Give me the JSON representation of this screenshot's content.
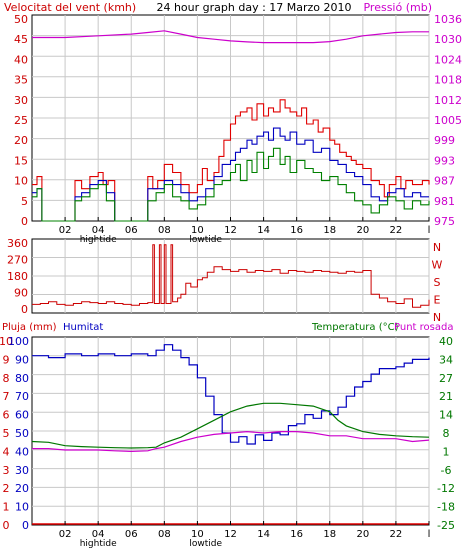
{
  "header": {
    "left_label": "Velocitat del vent (kmh)",
    "center_label": "24 hour graph day : 17 Marzo 2010",
    "right_label": "Pressió (mb)"
  },
  "colors": {
    "wind_speed": "#e00000",
    "wind_avg": "#0000c0",
    "wind_calm": "#008000",
    "pressure": "#cc00cc",
    "direction": "#cc0000",
    "humidity": "#0000c0",
    "temperature": "#007700",
    "dewpoint": "#cc00cc",
    "rain": "#e00000",
    "grid": "#c8c8c8",
    "frame": "#000000",
    "left_axis_text": "#cc0000",
    "right_axis_text": "#cc00cc",
    "humid_axis_text": "#0000c0",
    "temp_axis_text": "#007700"
  },
  "x_axis": {
    "range": [
      0,
      24
    ],
    "tick_labels": [
      "02",
      "04",
      "06",
      "08",
      "10",
      "12",
      "14",
      "16",
      "18",
      "20",
      "22",
      "l"
    ],
    "tick_hours": [
      2,
      4,
      6,
      8,
      10,
      12,
      14,
      16,
      18,
      20,
      22,
      24
    ],
    "tide_labels": [
      {
        "text": "hightide",
        "hour": 4
      },
      {
        "text": "lowtide",
        "hour": 10.5
      }
    ]
  },
  "chart_data": [
    {
      "type": "line",
      "panel": "wind",
      "left_axis": {
        "label": "Velocitat del vent (kmh)",
        "range": [
          0,
          50
        ],
        "ticks": [
          "0",
          "5",
          "10",
          "15",
          "20",
          "25",
          "30",
          "35",
          "40",
          "45",
          "50"
        ]
      },
      "right_axis": {
        "label": "Pressió (mb)",
        "range": [
          975,
          1035
        ],
        "ticks": [
          "975",
          "981",
          "987",
          "993",
          "999",
          "1005",
          "1012",
          "1018",
          "1024",
          "1030",
          "1036"
        ]
      },
      "series": [
        {
          "key": "gust",
          "color": "#e00000",
          "x": [
            0,
            0.3,
            0.6,
            1,
            1.5,
            2,
            2.3,
            2.6,
            3,
            3.5,
            4,
            4.3,
            4.6,
            5,
            5.5,
            6,
            6.5,
            7,
            7.3,
            7.6,
            8,
            8.5,
            9,
            9.5,
            10,
            10.3,
            10.6,
            11,
            11.3,
            11.6,
            12,
            12.3,
            12.6,
            13,
            13.3,
            13.6,
            14,
            14.3,
            14.6,
            15,
            15.3,
            15.6,
            16,
            16.3,
            16.6,
            17,
            17.3,
            17.6,
            18,
            18.3,
            18.6,
            19,
            19.3,
            19.6,
            20,
            20.5,
            21,
            21.3,
            21.6,
            22,
            22.3,
            22.6,
            23,
            23.3,
            23.6,
            24
          ],
          "values": [
            9,
            11,
            0,
            0,
            0,
            0,
            0,
            10,
            8,
            11,
            12,
            9,
            10,
            0,
            0,
            0,
            0,
            11,
            8,
            10,
            14,
            12,
            9,
            7,
            9,
            13,
            10,
            12,
            16,
            20,
            24,
            26,
            27,
            28,
            25,
            29,
            26,
            28,
            27,
            30,
            28,
            27,
            26,
            28,
            24,
            25,
            22,
            23,
            20,
            19,
            17,
            16,
            15,
            14,
            13,
            10,
            9,
            6,
            9,
            11,
            8,
            10,
            9,
            9,
            10,
            9
          ]
        },
        {
          "key": "average",
          "color": "#0000c0",
          "x": [
            0,
            0.3,
            0.6,
            1,
            1.5,
            2,
            2.3,
            2.6,
            3,
            3.5,
            4,
            4.5,
            5,
            5.5,
            6,
            6.5,
            7,
            7.5,
            8,
            8.5,
            9,
            9.5,
            10,
            10.5,
            11,
            11.5,
            12,
            12.3,
            12.6,
            13,
            13.3,
            13.6,
            14,
            14.3,
            14.6,
            15,
            15.3,
            15.6,
            16,
            16.5,
            17,
            17.5,
            18,
            18.5,
            19,
            19.5,
            20,
            20.5,
            21,
            21.5,
            22,
            22.5,
            23,
            23.5,
            24
          ],
          "values": [
            7,
            8,
            0,
            0,
            0,
            0,
            0,
            6,
            7,
            9,
            10,
            7,
            0,
            0,
            0,
            0,
            8,
            8,
            10,
            9,
            7,
            5,
            6,
            8,
            11,
            14,
            15,
            17,
            18,
            20,
            19,
            21,
            22,
            20,
            23,
            21,
            20,
            22,
            19,
            20,
            17,
            18,
            15,
            14,
            12,
            11,
            9,
            6,
            5,
            7,
            8,
            6,
            7,
            6,
            6
          ]
        },
        {
          "key": "speed",
          "color": "#008000",
          "x": [
            0,
            0.3,
            0.6,
            1,
            1.5,
            2,
            2.3,
            2.6,
            3,
            3.5,
            4,
            4.5,
            5,
            5.5,
            6,
            6.5,
            7,
            7.5,
            8,
            8.5,
            9,
            9.5,
            10,
            10.5,
            11,
            11.5,
            12,
            12.3,
            12.6,
            13,
            13.3,
            13.6,
            14,
            14.3,
            14.6,
            15,
            15.3,
            15.6,
            16,
            16.5,
            17,
            17.5,
            18,
            18.5,
            19,
            19.5,
            20,
            20.5,
            21,
            21.5,
            22,
            22.5,
            23,
            23.5,
            24
          ],
          "values": [
            6,
            8,
            0,
            0,
            0,
            0,
            0,
            5,
            6,
            8,
            9,
            5,
            0,
            0,
            0,
            0,
            5,
            7,
            9,
            6,
            5,
            3,
            4,
            6,
            9,
            10,
            12,
            14,
            10,
            15,
            12,
            17,
            13,
            16,
            18,
            14,
            16,
            12,
            15,
            13,
            12,
            10,
            11,
            9,
            7,
            5,
            4,
            2,
            4,
            6,
            5,
            3,
            5,
            4,
            5
          ]
        },
        {
          "key": "pressure",
          "color": "#cc00cc",
          "axis": "right",
          "x": [
            0,
            2,
            4,
            6,
            7,
            8,
            9,
            10,
            11,
            12,
            13,
            14,
            15,
            16,
            17,
            18,
            19,
            20,
            21,
            22,
            23,
            24
          ],
          "values": [
            1029.5,
            1029.5,
            1030,
            1030.5,
            1031,
            1031.5,
            1030.5,
            1029.5,
            1029,
            1028.5,
            1028.2,
            1028,
            1028,
            1028,
            1028,
            1028.3,
            1029,
            1030,
            1030.5,
            1031,
            1031.2,
            1031.2
          ]
        }
      ]
    },
    {
      "type": "line",
      "panel": "direction",
      "left_axis": {
        "range": [
          0,
          360
        ],
        "ticks": [
          "0",
          "90",
          "180",
          "270",
          "360"
        ]
      },
      "right_labels": [
        "N",
        "W",
        "S",
        "E",
        "N"
      ],
      "series": [
        {
          "key": "direction",
          "color": "#cc0000",
          "x": [
            0,
            0.5,
            1,
            1.5,
            2,
            2.5,
            3,
            3.5,
            4,
            4.5,
            5,
            5.5,
            6,
            6.5,
            7,
            7.3,
            7.4,
            7.7,
            7.8,
            8.0,
            8.1,
            8.4,
            8.5,
            8.8,
            9,
            9.3,
            9.6,
            10,
            10.3,
            10.6,
            11,
            11.5,
            12,
            12.5,
            13,
            13.5,
            14,
            14.5,
            15,
            15.5,
            16,
            16.5,
            17,
            17.5,
            18,
            18.5,
            19,
            19.5,
            20,
            20.5,
            21,
            21.5,
            22,
            22.5,
            23,
            23.5,
            24
          ],
          "values": [
            25,
            30,
            40,
            25,
            20,
            30,
            40,
            35,
            30,
            40,
            30,
            25,
            20,
            30,
            35,
            350,
            30,
            350,
            30,
            350,
            30,
            350,
            40,
            60,
            80,
            140,
            120,
            160,
            170,
            200,
            230,
            215,
            205,
            215,
            200,
            210,
            205,
            215,
            195,
            210,
            205,
            200,
            210,
            205,
            200,
            195,
            205,
            200,
            210,
            80,
            60,
            40,
            30,
            55,
            10,
            20,
            50
          ]
        }
      ]
    },
    {
      "type": "line",
      "panel": "temp_humidity",
      "rain_axis": {
        "label": "Pluja (mm)",
        "range": [
          0,
          10
        ],
        "ticks": [
          "0",
          "1",
          "2",
          "3",
          "4",
          "5",
          "6",
          "7",
          "8",
          "9",
          "10"
        ]
      },
      "humidity_axis": {
        "label": "Humitat",
        "range": [
          0,
          100
        ],
        "ticks": [
          "0",
          "10",
          "20",
          "30",
          "40",
          "50",
          "60",
          "70",
          "80",
          "90",
          "100"
        ]
      },
      "temp_axis": {
        "label": "Temperatura (°C)",
        "range": [
          -25,
          40
        ],
        "ticks": [
          "-25",
          "-18",
          "-12",
          "-6",
          "1",
          "8",
          "14",
          "21",
          "27",
          "34",
          "40"
        ]
      },
      "legend_labels": {
        "temperature": "Temperatura (°C)",
        "dewpoint": "Punt rosada"
      },
      "series": [
        {
          "key": "humidity",
          "color": "#0000c0",
          "axis": "humidity",
          "x": [
            0,
            1,
            2,
            3,
            4,
            5,
            6,
            7,
            7.5,
            8,
            8.5,
            9,
            9.5,
            10,
            10.5,
            11,
            11.5,
            12,
            12.5,
            13,
            13.5,
            14,
            14.5,
            15,
            15.5,
            16,
            16.5,
            17,
            17.5,
            18,
            18.5,
            19,
            19.5,
            20,
            20.5,
            21,
            22,
            22.5,
            23,
            24
          ],
          "values": [
            92,
            91,
            93,
            92,
            93,
            92,
            93,
            92,
            95,
            98,
            95,
            91,
            87,
            80,
            70,
            60,
            50,
            45,
            48,
            44,
            49,
            46,
            50,
            49,
            54,
            55,
            60,
            58,
            62,
            60,
            64,
            70,
            75,
            78,
            82,
            85,
            86,
            88,
            90,
            91
          ]
        },
        {
          "key": "temperature",
          "color": "#007700",
          "axis": "temp",
          "x": [
            0,
            1,
            2,
            3,
            4,
            5,
            6,
            7,
            7.5,
            8,
            9,
            10,
            11,
            12,
            13,
            14,
            15,
            16,
            17,
            18,
            18.5,
            19,
            20,
            21,
            22,
            23,
            24
          ],
          "values": [
            4.5,
            4.2,
            3,
            2.7,
            2.5,
            2.3,
            2.2,
            2.3,
            2.5,
            4,
            6,
            9,
            12,
            15,
            17,
            18,
            18,
            17.5,
            17,
            15,
            12,
            10,
            8,
            7,
            6.5,
            6.2,
            6
          ]
        },
        {
          "key": "dewpoint",
          "color": "#cc00cc",
          "axis": "temp",
          "x": [
            0,
            1,
            2,
            3,
            4,
            5,
            6,
            7,
            7.5,
            8,
            9,
            10,
            11,
            12,
            13,
            14,
            15,
            16,
            17,
            18,
            19,
            20,
            21,
            22,
            23,
            24
          ],
          "values": [
            2,
            2,
            1.5,
            1.5,
            1.5,
            1.2,
            1,
            1.2,
            2,
            2.5,
            4.5,
            6,
            7,
            7.5,
            8,
            7.5,
            8,
            8,
            7.5,
            6.5,
            6.5,
            5.5,
            5.5,
            5.5,
            4.5,
            5
          ]
        },
        {
          "key": "rain",
          "color": "#e00000",
          "axis": "rain",
          "x": [
            0,
            24
          ],
          "values": [
            0,
            0
          ]
        }
      ]
    }
  ]
}
